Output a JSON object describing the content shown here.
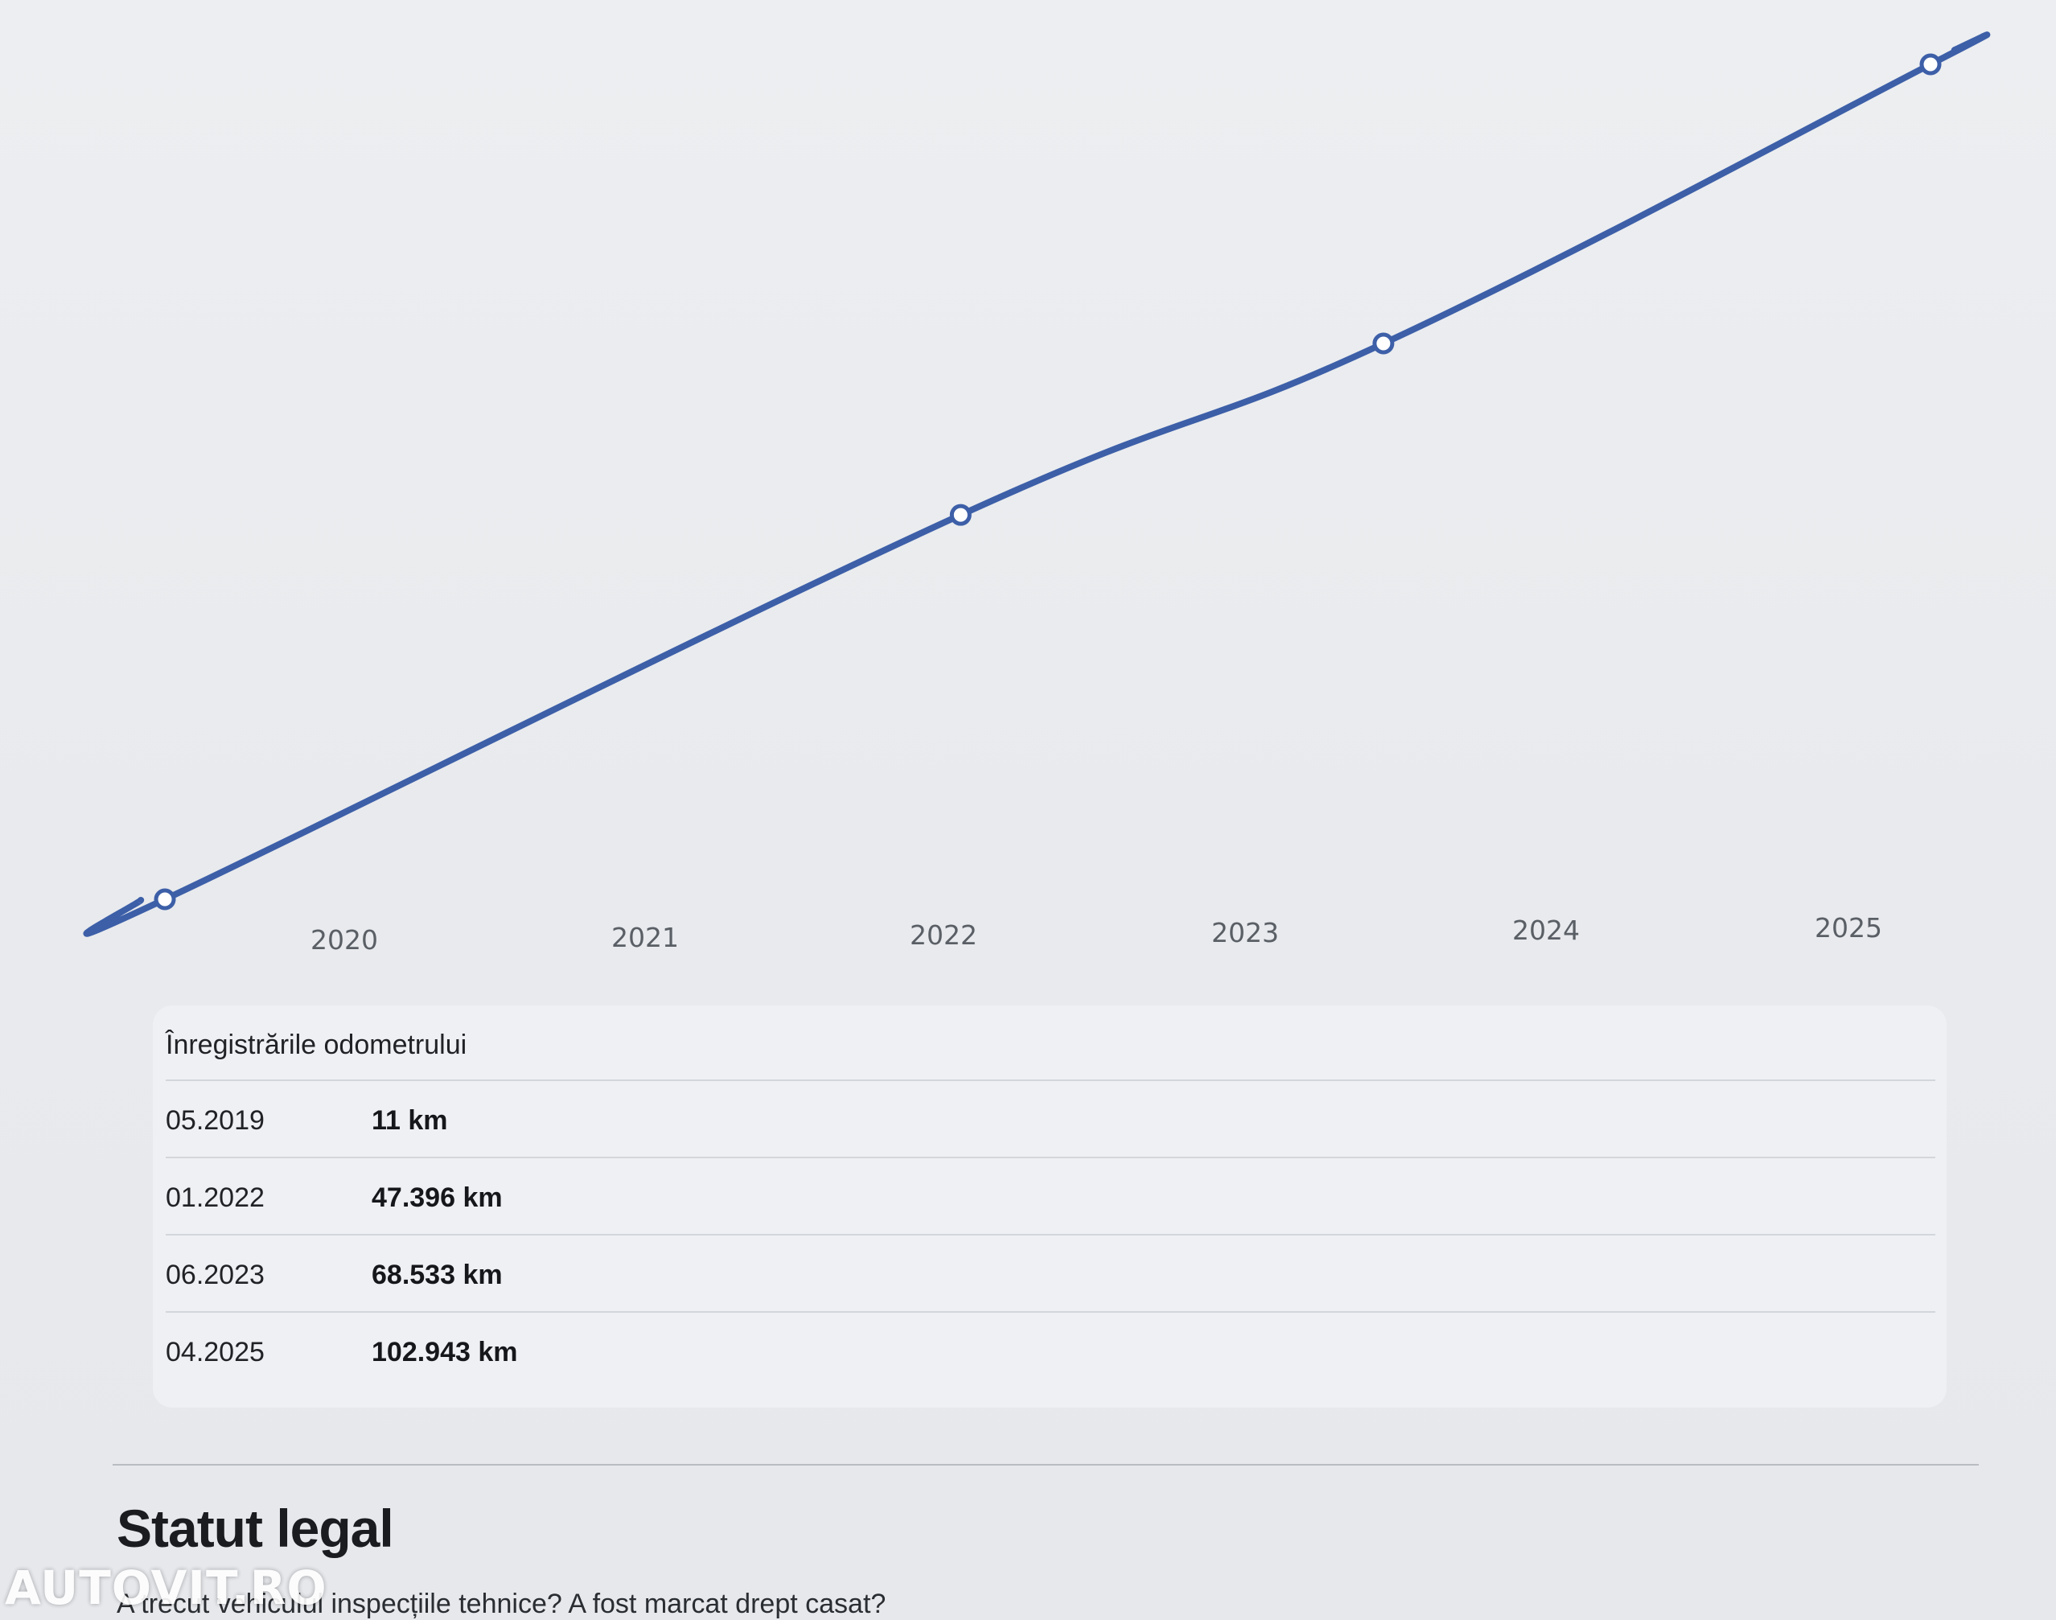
{
  "chart_data": {
    "type": "line",
    "x_dates": [
      "2019-05",
      "2022-01",
      "2023-06",
      "2025-04"
    ],
    "y_km": [
      11,
      47396,
      68533,
      102943
    ],
    "x_ticks": [
      "2020",
      "2021",
      "2022",
      "2023",
      "2024",
      "2025"
    ],
    "ylim": [
      11,
      102943
    ],
    "grid": false,
    "line_color": "#3d5fa8",
    "marker_fill": "#ffffff"
  },
  "odometer": {
    "title": "Înregistrările odometrului",
    "records": [
      {
        "date": "05.2019",
        "km": "11 km"
      },
      {
        "date": "01.2022",
        "km": "47.396 km"
      },
      {
        "date": "06.2023",
        "km": "68.533 km"
      },
      {
        "date": "04.2025",
        "km": "102.943 km"
      }
    ]
  },
  "legal": {
    "title": "Statut legal",
    "subtitle": "A trecut vehiculul inspecțiile tehnice? A fost marcat drept casat?"
  },
  "watermark": "AUTOVIT.RO"
}
